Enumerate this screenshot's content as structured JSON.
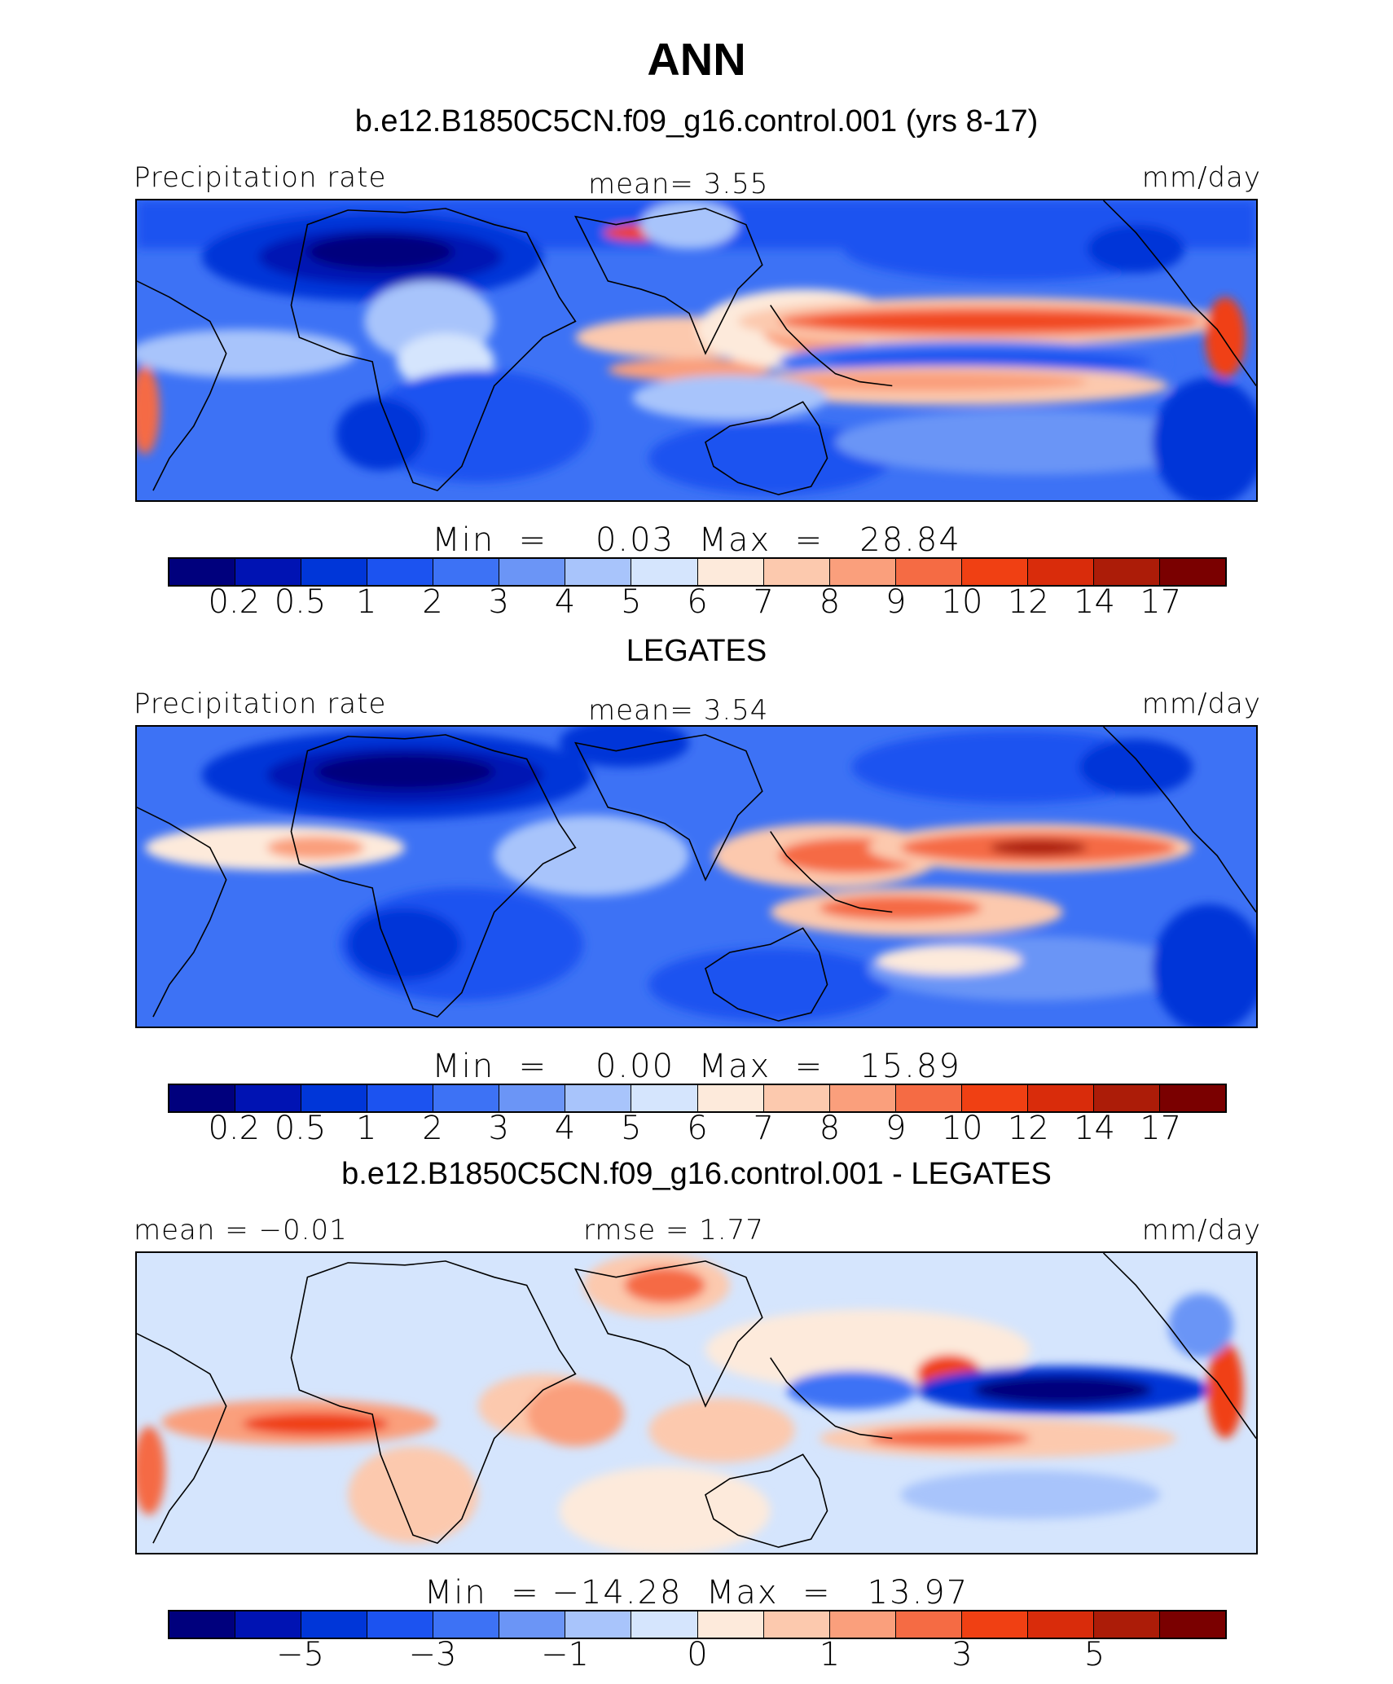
{
  "title": "ANN",
  "panel1": {
    "subtitle": "b.e12.B1850C5CN.f09_g16.control.001 (yrs 8-17)",
    "left_label": "Precipitation rate",
    "center_label": "mean=    3.55",
    "right_label": "mm/day",
    "minmax": "Min  =    0.03  Max  =   28.84"
  },
  "panel2": {
    "subtitle": "LEGATES",
    "left_label": "Precipitation rate",
    "center_label": "mean=    3.54",
    "right_label": "mm/day",
    "minmax": "Min  =    0.00  Max  =   15.89"
  },
  "panel3": {
    "subtitle": "b.e12.B1850C5CN.f09_g16.control.001 - LEGATES",
    "left_label": "mean  =   −0.01",
    "center_label": "rmse  =    1.77",
    "right_label": "mm/day",
    "minmax": "Min  = −14.28  Max  =   13.97"
  },
  "colorbar_colors": [
    "#00007d",
    "#0013b3",
    "#0036d8",
    "#1c53f0",
    "#3d72f5",
    "#6b95f6",
    "#a8c4fb",
    "#d5e5fd",
    "#fdeadb",
    "#fcc9ae",
    "#fa9f7c",
    "#f56b44",
    "#f04013",
    "#d92c0b",
    "#ac1c08",
    "#7a0000"
  ],
  "colorbar_precip_ticks": [
    "0.2",
    "0.5",
    "1",
    "2",
    "3",
    "4",
    "5",
    "6",
    "7",
    "8",
    "9",
    "10",
    "12",
    "14",
    "17"
  ],
  "colorbar_diff_ticks": [
    "−5",
    "−3",
    "−1",
    "0",
    "1",
    "3",
    "5"
  ]
}
